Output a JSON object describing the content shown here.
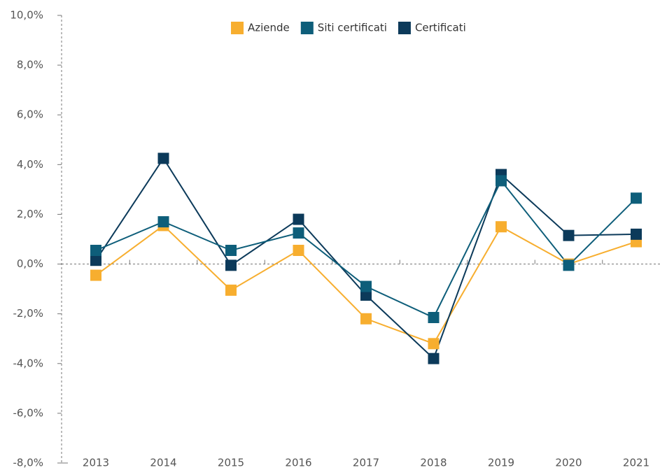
{
  "chart_data": {
    "type": "line",
    "categories": [
      "2013",
      "2014",
      "2015",
      "2016",
      "2017",
      "2018",
      "2019",
      "2020",
      "2021"
    ],
    "series": [
      {
        "name": "Aziende",
        "color": "#f7ae2f",
        "values": [
          -0.45,
          1.55,
          -1.05,
          0.55,
          -2.2,
          -3.2,
          1.5,
          0.0,
          0.9
        ]
      },
      {
        "name": "Siti certificati",
        "color": "#0e5e7a",
        "values": [
          0.55,
          1.7,
          0.55,
          1.25,
          -0.9,
          -2.15,
          3.35,
          -0.05,
          2.65
        ]
      },
      {
        "name": "Certificati",
        "color": "#0c3a5a",
        "values": [
          0.15,
          4.25,
          -0.05,
          1.8,
          -1.25,
          -3.8,
          3.6,
          1.15,
          1.2
        ]
      }
    ],
    "ylim": [
      -8,
      10
    ],
    "yticks": [
      {
        "value": -8,
        "label": "-8,0%"
      },
      {
        "value": -6,
        "label": "-6,0%"
      },
      {
        "value": -4,
        "label": "-4,0%"
      },
      {
        "value": -2,
        "label": "-2,0%"
      },
      {
        "value": 0,
        "label": "0,0%"
      },
      {
        "value": 2,
        "label": "2,0%"
      },
      {
        "value": 4,
        "label": "4,0%"
      },
      {
        "value": 6,
        "label": "6,0%"
      },
      {
        "value": 8,
        "label": "8,0%"
      },
      {
        "value": 10,
        "label": "10,0%"
      }
    ],
    "legend": "top"
  }
}
